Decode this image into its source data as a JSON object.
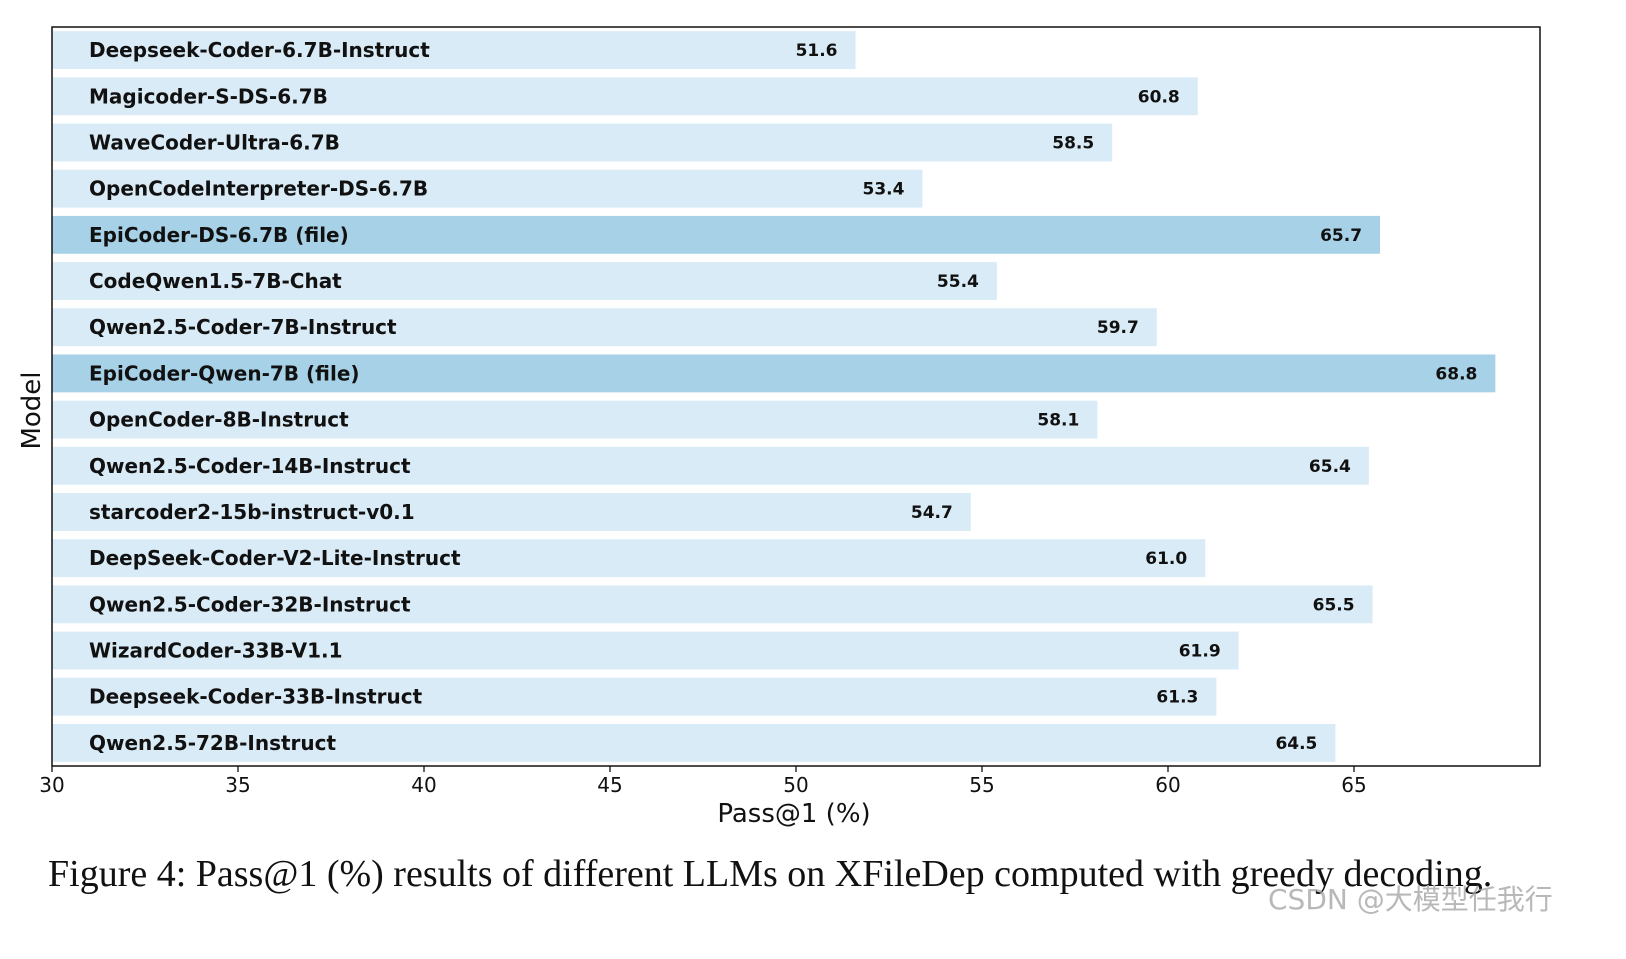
{
  "chart_data": {
    "type": "bar",
    "orientation": "horizontal",
    "categories": [
      "Deepseek-Coder-6.7B-Instruct",
      "Magicoder-S-DS-6.7B",
      "WaveCoder-Ultra-6.7B",
      "OpenCodeInterpreter-DS-6.7B",
      "EpiCoder-DS-6.7B (file)",
      "CodeQwen1.5-7B-Chat",
      "Qwen2.5-Coder-7B-Instruct",
      "EpiCoder-Qwen-7B (file)",
      "OpenCoder-8B-Instruct",
      "Qwen2.5-Coder-14B-Instruct",
      "starcoder2-15b-instruct-v0.1",
      "DeepSeek-Coder-V2-Lite-Instruct",
      "Qwen2.5-Coder-32B-Instruct",
      "WizardCoder-33B-V1.1",
      "Deepseek-Coder-33B-Instruct",
      "Qwen2.5-72B-Instruct"
    ],
    "values": [
      51.6,
      60.8,
      58.5,
      53.4,
      65.7,
      55.4,
      59.7,
      68.8,
      58.1,
      65.4,
      54.7,
      61.0,
      65.5,
      61.9,
      61.3,
      64.5
    ],
    "value_labels": [
      "51.6",
      "60.8",
      "58.5",
      "53.4",
      "65.7",
      "55.4",
      "59.7",
      "68.8",
      "58.1",
      "65.4",
      "54.7",
      "61.0",
      "65.5",
      "61.9",
      "61.3",
      "64.5"
    ],
    "highlighted": [
      false,
      false,
      false,
      false,
      true,
      false,
      false,
      true,
      false,
      false,
      false,
      false,
      false,
      false,
      false,
      false
    ],
    "xlabel": "Pass@1 (%)",
    "ylabel": "Model",
    "xlim": [
      30,
      70
    ],
    "xticks": [
      "30",
      "35",
      "40",
      "45",
      "50",
      "55",
      "60",
      "65"
    ],
    "grid": false,
    "colors": {
      "bar": "#d9ebf6",
      "highlight": "#a6d1e6",
      "axis": "#111111"
    }
  },
  "caption": "Figure 4: Pass@1 (%) results of different LLMs on XFileDep computed with greedy decoding.",
  "watermark": "CSDN @大模型任我行"
}
